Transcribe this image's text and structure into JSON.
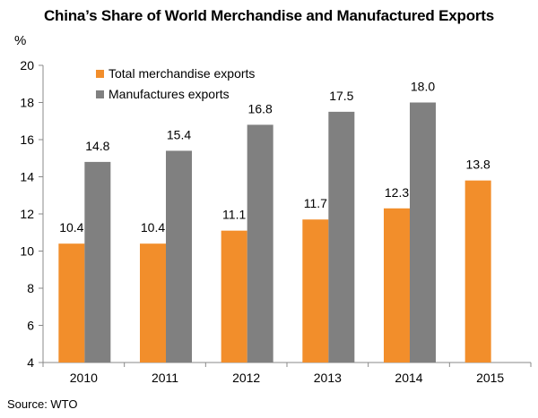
{
  "chart_data": {
    "type": "bar",
    "title": "China’s Share of World Merchandise and Manufactured Exports",
    "ylabel": "%",
    "categories": [
      "2010",
      "2011",
      "2012",
      "2013",
      "2014",
      "2015"
    ],
    "series": [
      {
        "name": "Total merchandise exports",
        "values": [
          10.4,
          10.4,
          11.1,
          11.7,
          12.3,
          13.8
        ],
        "color": "#F28E2B"
      },
      {
        "name": "Manufactures exports",
        "values": [
          14.8,
          15.4,
          16.8,
          17.5,
          18.0,
          null
        ],
        "color": "#808080"
      }
    ],
    "ylim": [
      4,
      20
    ],
    "yticks": [
      4,
      6,
      8,
      10,
      12,
      14,
      16,
      18,
      20
    ],
    "legend": "top-left",
    "grid": false
  },
  "source": "Source: WTO"
}
